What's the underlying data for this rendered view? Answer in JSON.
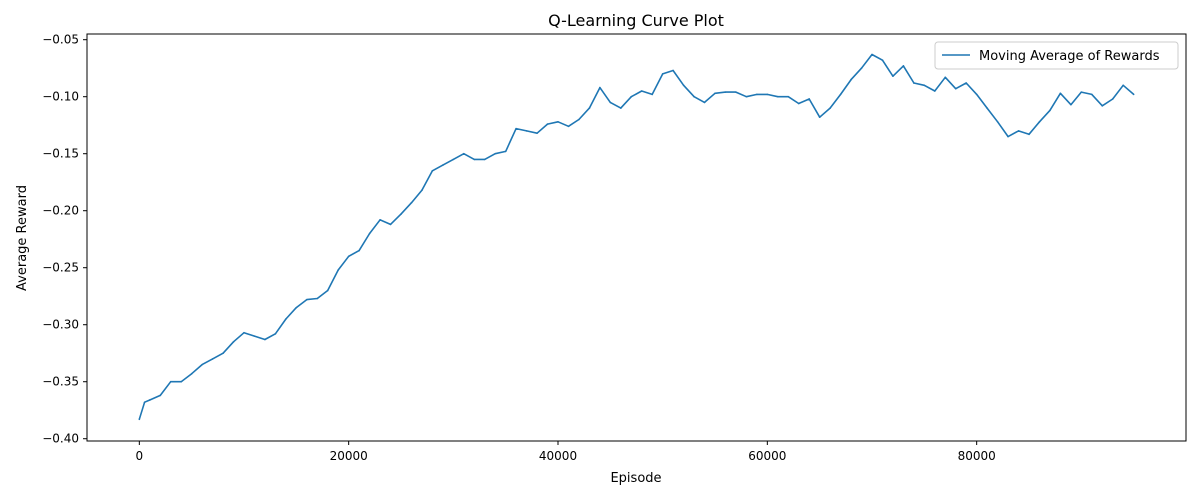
{
  "chart_data": {
    "type": "line",
    "title": "Q-Learning Curve Plot",
    "xlabel": "Episode",
    "ylabel": "Average Reward",
    "xlim": [
      -5000,
      100000
    ],
    "ylim": [
      -0.402,
      -0.045
    ],
    "xticks": [
      0,
      20000,
      40000,
      60000,
      80000
    ],
    "xtick_labels": [
      "0",
      "20000",
      "40000",
      "60000",
      "80000"
    ],
    "yticks": [
      -0.4,
      -0.35,
      -0.3,
      -0.25,
      -0.2,
      -0.15,
      -0.1,
      -0.05
    ],
    "ytick_labels": [
      "−0.40",
      "−0.35",
      "−0.30",
      "−0.25",
      "−0.20",
      "−0.15",
      "−0.10",
      "−0.05"
    ],
    "grid": false,
    "legend": {
      "position": "top-right"
    },
    "series": [
      {
        "name": "Moving Average of Rewards",
        "color": "#1f77b4",
        "x": [
          0,
          500,
          1000,
          2000,
          3000,
          4000,
          5000,
          6000,
          7000,
          8000,
          9000,
          10000,
          11000,
          12000,
          13000,
          14000,
          15000,
          16000,
          17000,
          18000,
          19000,
          20000,
          21000,
          22000,
          23000,
          24000,
          25000,
          26000,
          27000,
          28000,
          29000,
          30000,
          31000,
          32000,
          33000,
          34000,
          35000,
          36000,
          37000,
          38000,
          39000,
          40000,
          41000,
          42000,
          43000,
          44000,
          45000,
          46000,
          47000,
          48000,
          49000,
          50000,
          51000,
          52000,
          53000,
          54000,
          55000,
          56000,
          57000,
          58000,
          59000,
          60000,
          61000,
          62000,
          63000,
          64000,
          65000,
          66000,
          67000,
          68000,
          69000,
          70000,
          71000,
          72000,
          73000,
          74000,
          75000,
          76000,
          77000,
          78000,
          79000,
          80000,
          81000,
          82000,
          83000,
          84000,
          85000,
          86000,
          87000,
          88000,
          89000,
          90000,
          91000,
          92000,
          93000,
          94000,
          95000
        ],
        "y": [
          -0.383,
          -0.368,
          -0.366,
          -0.362,
          -0.35,
          -0.35,
          -0.343,
          -0.335,
          -0.33,
          -0.325,
          -0.315,
          -0.307,
          -0.31,
          -0.313,
          -0.308,
          -0.295,
          -0.285,
          -0.278,
          -0.277,
          -0.27,
          -0.252,
          -0.24,
          -0.235,
          -0.22,
          -0.208,
          -0.212,
          -0.203,
          -0.193,
          -0.182,
          -0.165,
          -0.16,
          -0.155,
          -0.15,
          -0.155,
          -0.155,
          -0.15,
          -0.148,
          -0.128,
          -0.13,
          -0.132,
          -0.124,
          -0.122,
          -0.126,
          -0.12,
          -0.11,
          -0.092,
          -0.105,
          -0.11,
          -0.1,
          -0.095,
          -0.098,
          -0.08,
          -0.077,
          -0.09,
          -0.1,
          -0.105,
          -0.097,
          -0.096,
          -0.096,
          -0.1,
          -0.098,
          -0.098,
          -0.1,
          -0.1,
          -0.106,
          -0.102,
          -0.118,
          -0.11,
          -0.098,
          -0.085,
          -0.075,
          -0.063,
          -0.068,
          -0.082,
          -0.073,
          -0.088,
          -0.09,
          -0.095,
          -0.083,
          -0.093,
          -0.088,
          -0.098,
          -0.11,
          -0.122,
          -0.135,
          -0.13,
          -0.133,
          -0.122,
          -0.112,
          -0.097,
          -0.107,
          -0.096,
          -0.098,
          -0.108,
          -0.102,
          -0.09,
          -0.098
        ]
      }
    ]
  }
}
